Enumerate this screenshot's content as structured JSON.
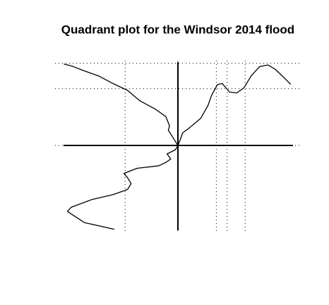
{
  "chart_data": {
    "type": "line",
    "title": "Quadrant plot for the Windsor 2014 flood",
    "xlim": [
      -1,
      1
    ],
    "ylim": [
      -1,
      1
    ],
    "color": "#000000",
    "dotted_x": [
      -0.44,
      0,
      0.32,
      0.41,
      0.56
    ],
    "dotted_y": [
      0.97,
      0.67,
      0
    ],
    "series": [
      {
        "x": [
          -0.95,
          -0.89,
          -0.78,
          -0.66,
          -0.54,
          -0.42,
          -0.32,
          -0.19,
          -0.1,
          -0.07,
          -0.08,
          -0.04,
          0,
          -0.02,
          -0.09,
          -0.06,
          -0.1,
          -0.16,
          -0.34,
          -0.45,
          -0.42,
          -0.39,
          -0.42,
          -0.54,
          -0.72,
          -0.89,
          -0.92,
          -0.78,
          -0.53,
          null,
          0,
          0.02,
          0.04,
          0.08,
          0.14,
          0.19,
          0.25,
          0.28,
          0.33,
          0.37,
          0.43,
          0.49,
          0.55,
          0.61,
          0.68,
          0.75,
          0.81,
          0.87,
          0.94
        ],
        "values": [
          0.96,
          0.94,
          0.88,
          0.82,
          0.73,
          0.65,
          0.53,
          0.43,
          0.34,
          0.23,
          0.18,
          0.09,
          0,
          -0.05,
          -0.1,
          -0.16,
          -0.2,
          -0.24,
          -0.27,
          -0.33,
          -0.38,
          -0.45,
          -0.52,
          -0.58,
          -0.64,
          -0.73,
          -0.78,
          -0.91,
          -0.99,
          null,
          0,
          0.07,
          0.15,
          0.19,
          0.26,
          0.32,
          0.47,
          0.59,
          0.72,
          0.73,
          0.63,
          0.62,
          0.68,
          0.82,
          0.93,
          0.95,
          0.9,
          0.82,
          0.72
        ]
      }
    ]
  }
}
